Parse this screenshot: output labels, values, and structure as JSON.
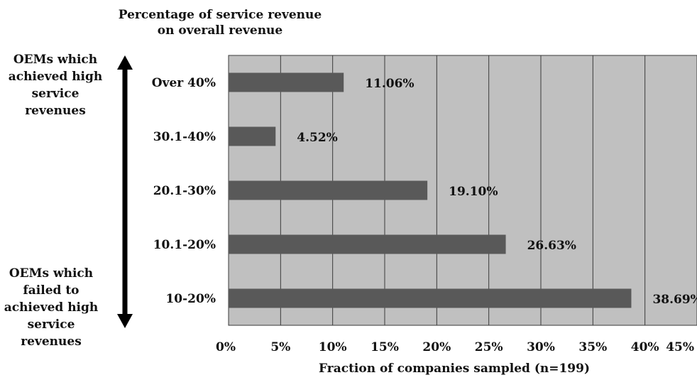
{
  "colors": {
    "plot_bg": "#c0c0c0",
    "bar": "#595959",
    "grid": "#3a3a3a",
    "arrow": "#000000"
  },
  "annotations": {
    "top_label": "OEMs which achieved high service revenues",
    "bottom_label": "OEMs which failed to achieved high service revenues"
  },
  "chart_data": {
    "type": "bar",
    "orientation": "horizontal",
    "title": "Percentage of service revenue on overall revenue",
    "xlabel": "Fraction of companies sampled (n=199)",
    "ylabel": "",
    "categories": [
      "Over 40%",
      "30.1-40%",
      "20.1-30%",
      "10.1-20%",
      "10-20%"
    ],
    "values": [
      11.06,
      4.52,
      19.1,
      26.63,
      38.69
    ],
    "value_labels": [
      "11.06%",
      "4.52%",
      "19.10%",
      "26.63%",
      "38.69%"
    ],
    "xlim": [
      0,
      45
    ],
    "xticks": [
      0,
      5,
      10,
      15,
      20,
      25,
      30,
      35,
      40,
      45
    ],
    "xtick_labels": [
      "0%",
      "5%",
      "10%",
      "15%",
      "20%",
      "25%",
      "30%",
      "35%",
      "40%",
      "45%"
    ],
    "grid": true,
    "legend": "none"
  }
}
